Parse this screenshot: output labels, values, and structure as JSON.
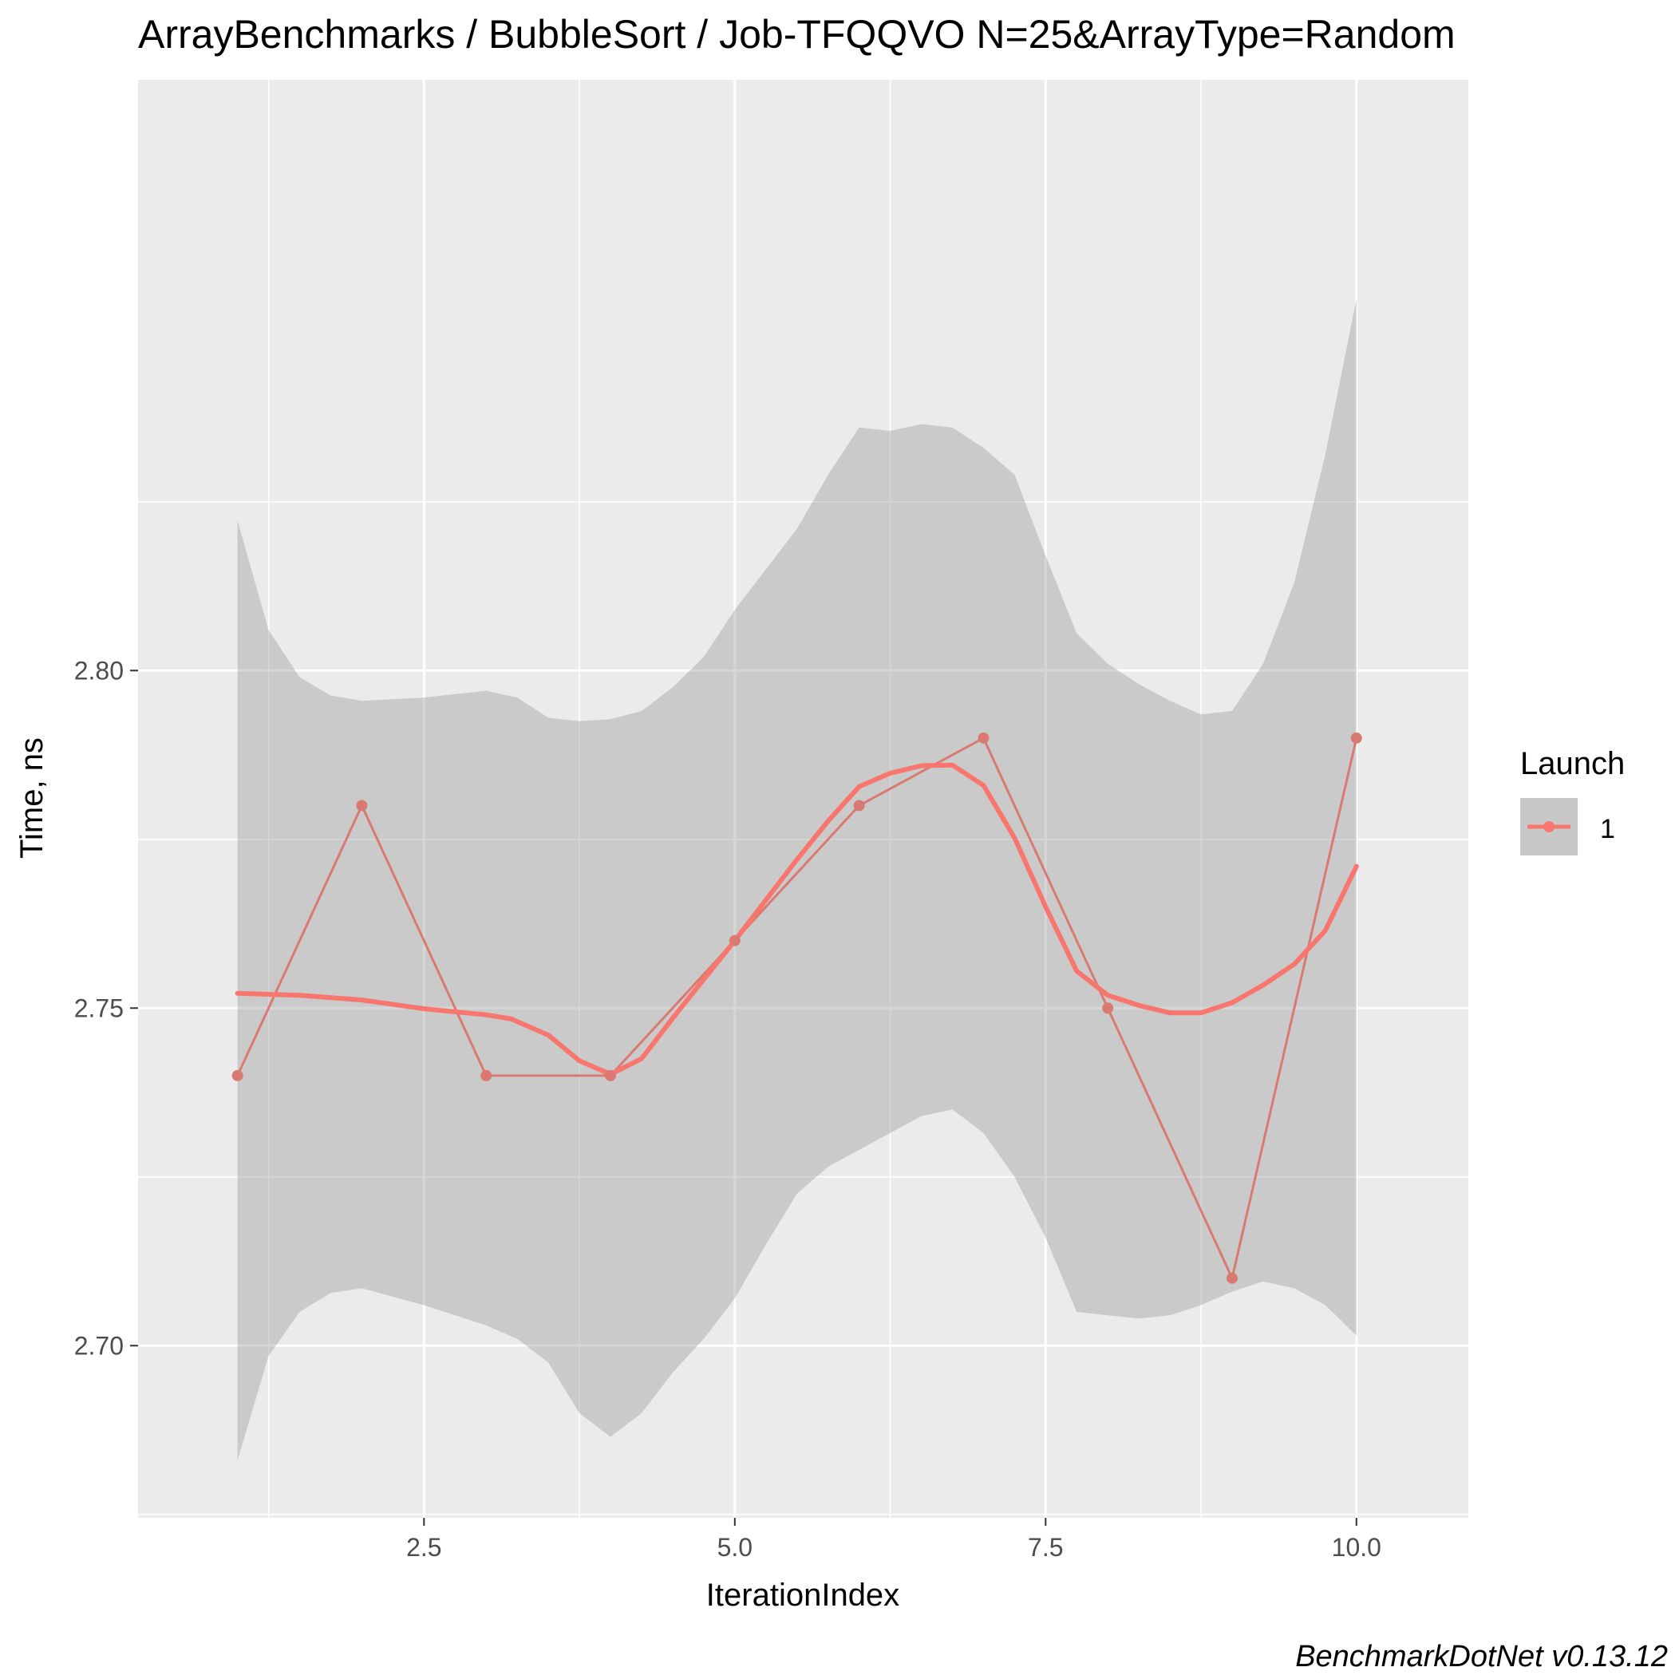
{
  "chart_data": {
    "type": "line",
    "title": "ArrayBenchmarks / BubbleSort / Job-TFQQVO N=25&ArrayType=Random",
    "xlabel": "IterationIndex",
    "ylabel": "Time, ns",
    "xlim": [
      0.2,
      10.9
    ],
    "ylim": [
      2.6745,
      2.8875
    ],
    "x_ticks": [
      2.5,
      5.0,
      7.5,
      10.0
    ],
    "x_tick_labels": [
      "2.5",
      "5.0",
      "7.5",
      "10.0"
    ],
    "y_ticks": [
      2.7,
      2.75,
      2.8
    ],
    "y_tick_labels": [
      "2.70",
      "2.75",
      "2.80"
    ],
    "grid": true,
    "legend": {
      "title": "Launch",
      "position": "right",
      "entries": [
        "1"
      ]
    },
    "series": [
      {
        "name": "1",
        "color": "#F8766D",
        "x": [
          1,
          2,
          3,
          4,
          5,
          6,
          7,
          8,
          9,
          10
        ],
        "y": [
          2.74,
          2.78,
          2.74,
          2.74,
          2.76,
          2.78,
          2.79,
          2.75,
          2.71,
          2.79
        ]
      }
    ],
    "smooth": {
      "x": [
        1,
        1.5,
        2,
        2.5,
        3,
        3.2,
        3.5,
        3.75,
        4,
        4.25,
        4.5,
        5,
        5.5,
        5.75,
        6,
        6.25,
        6.5,
        6.75,
        7,
        7.25,
        7.5,
        7.75,
        8,
        8.25,
        8.5,
        8.75,
        9,
        9.25,
        9.5,
        9.75,
        10
      ],
      "y": [
        2.7522,
        2.7519,
        2.7512,
        2.7499,
        2.749,
        2.7484,
        2.746,
        2.7422,
        2.7402,
        2.7425,
        2.7485,
        2.76,
        2.772,
        2.7777,
        2.7828,
        2.7848,
        2.7859,
        2.786,
        2.783,
        2.7752,
        2.765,
        2.7555,
        2.7519,
        2.7504,
        2.7493,
        2.7493,
        2.7508,
        2.7534,
        2.7565,
        2.7615,
        2.771
      ]
    },
    "ci_band": {
      "x": [
        1,
        1.25,
        1.5,
        1.75,
        2,
        2.5,
        3,
        3.25,
        3.5,
        3.75,
        4,
        4.25,
        4.5,
        4.75,
        5,
        5.25,
        5.5,
        5.75,
        6,
        6.25,
        6.5,
        6.75,
        7,
        7.25,
        7.5,
        7.75,
        8,
        8.25,
        8.5,
        8.75,
        9,
        9.25,
        9.5,
        9.75,
        10
      ],
      "upper": [
        2.8222,
        2.806,
        2.799,
        2.7963,
        2.7955,
        2.796,
        2.797,
        2.796,
        2.793,
        2.7925,
        2.7928,
        2.794,
        2.7975,
        2.802,
        2.809,
        2.815,
        2.821,
        2.829,
        2.836,
        2.8355,
        2.8365,
        2.836,
        2.833,
        2.829,
        2.817,
        2.8055,
        2.801,
        2.798,
        2.7955,
        2.7935,
        2.794,
        2.801,
        2.813,
        2.832,
        2.855
      ],
      "lower": [
        2.683,
        2.6985,
        2.705,
        2.7078,
        2.7085,
        2.706,
        2.703,
        2.701,
        2.6975,
        2.69,
        2.6865,
        2.69,
        2.696,
        2.701,
        2.707,
        2.715,
        2.7225,
        2.7265,
        2.729,
        2.7315,
        2.734,
        2.735,
        2.7315,
        2.725,
        2.716,
        2.705,
        2.7045,
        2.704,
        2.7045,
        2.706,
        2.708,
        2.7095,
        2.7085,
        2.706,
        2.7015
      ]
    }
  },
  "footer": {
    "caption": "BenchmarkDotNet v0.13.12"
  }
}
